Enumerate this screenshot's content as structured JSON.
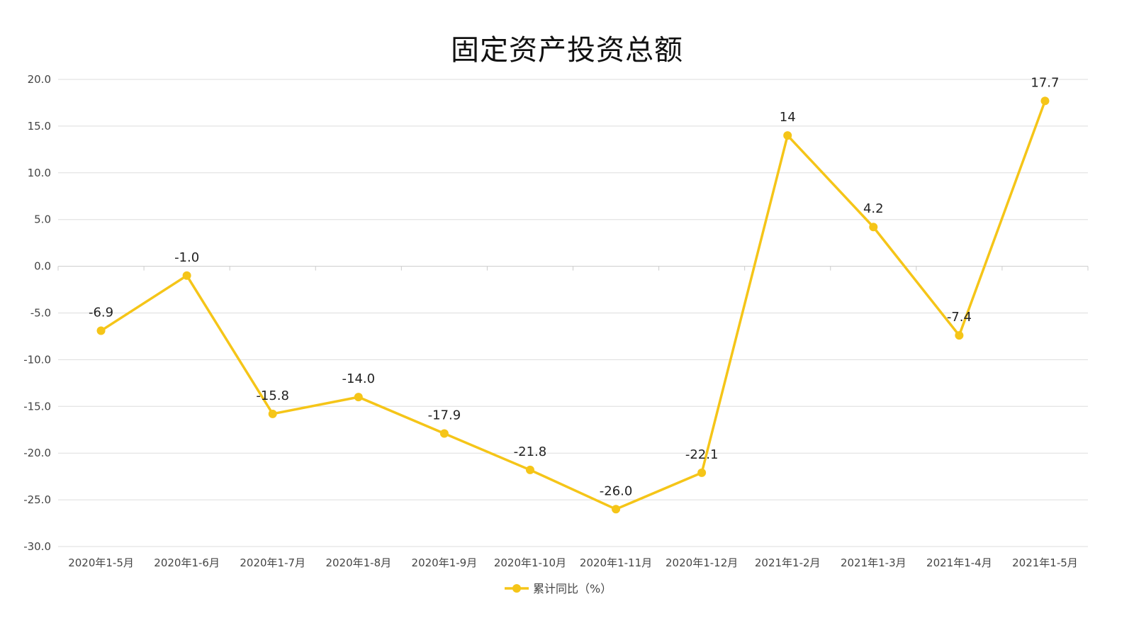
{
  "chart_data": {
    "type": "line",
    "title": "固定资产投资总额",
    "categories": [
      "2020年1-5月",
      "2020年1-6月",
      "2020年1-7月",
      "2020年1-8月",
      "2020年1-9月",
      "2020年1-10月",
      "2020年1-11月",
      "2020年1-12月",
      "2021年1-2月",
      "2021年1-3月",
      "2021年1-4月",
      "2021年1-5月"
    ],
    "series": [
      {
        "name": "累计同比（%）",
        "values": [
          -6.9,
          -1.0,
          -15.8,
          -14.0,
          -17.9,
          -21.8,
          -26.0,
          -22.1,
          14,
          4.2,
          -7.4,
          17.7
        ],
        "labels": [
          "-6.9",
          "-1.0",
          "-15.8",
          "-14.0",
          "-17.9",
          "-21.8",
          "-26.0",
          "-22.1",
          "14",
          "4.2",
          "-7.4",
          "17.7"
        ],
        "color": "#F5C518"
      }
    ],
    "yticks": [
      "20.0",
      "15.0",
      "10.0",
      "5.0",
      "0.0",
      "-5.0",
      "-10.0",
      "-15.0",
      "-20.0",
      "-25.0",
      "-30.0"
    ],
    "ylim": [
      -30,
      20
    ],
    "xlabel": "",
    "ylabel": "",
    "grid": true,
    "legend": "bottom-center",
    "colors": {
      "line": "#F5C518",
      "grid": "#dddddd",
      "axis": "#cccccc"
    }
  }
}
